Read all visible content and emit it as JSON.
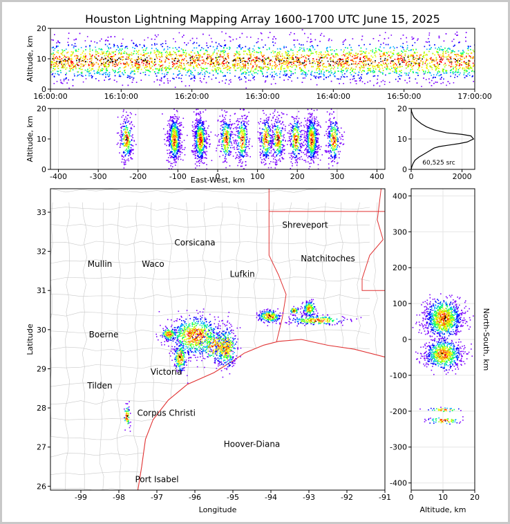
{
  "chart_data": [
    {
      "type": "scatter",
      "title": "Houston Lightning Mapping Array 1600-1700 UTC June 15, 2025",
      "xlabel": "",
      "ylabel": "Altitude, km",
      "xticks": [
        "16:00:00",
        "16:10:00",
        "16:20:00",
        "16:30:00",
        "16:40:00",
        "16:50:00",
        "17:00:00"
      ],
      "xlim": [
        "16:00:00",
        "17:00:00"
      ],
      "ylim": [
        0,
        20
      ],
      "yticks": [
        0,
        10,
        20
      ],
      "description_of_density": "source density vs time, most sources between 5 and 15 km altitude"
    },
    {
      "type": "scatter",
      "xlabel": "East-West, km",
      "ylabel": "Altitude, km",
      "xlim": [
        -420,
        420
      ],
      "ylim": [
        0,
        20
      ],
      "xticks": [
        -400,
        -300,
        -200,
        -100,
        0,
        100,
        200,
        300,
        400
      ],
      "yticks": [
        0,
        10,
        20
      ],
      "clusters_x": [
        -230,
        -110,
        -45,
        20,
        60,
        120,
        150,
        195,
        235,
        290
      ]
    },
    {
      "type": "line",
      "xlabel": "",
      "ylabel": "",
      "xlim": [
        0,
        2500
      ],
      "ylim": [
        0,
        20
      ],
      "xticks": [
        0,
        2000
      ],
      "yticks": [
        0,
        10,
        20
      ],
      "annotation": "60,525 src",
      "series": [
        {
          "x": [
            0,
            30,
            80,
            150,
            300,
            500,
            700,
            900,
            1100,
            1500,
            1900,
            2200,
            2450,
            2350,
            2000,
            1400,
            900,
            600,
            400,
            250,
            120,
            60,
            20,
            0
          ],
          "y": [
            0,
            1,
            2,
            3,
            4,
            5,
            6,
            7,
            7.5,
            8,
            8.5,
            9,
            10,
            11,
            11.5,
            12,
            13,
            14,
            15,
            16,
            17,
            18,
            19,
            20
          ]
        }
      ]
    },
    {
      "type": "map",
      "xlabel": "Longitude",
      "ylabel": "Latitude",
      "xlim": [
        -99.8,
        -91
      ],
      "ylim": [
        25.9,
        33.6
      ],
      "xticks": [
        -99,
        -98,
        -97,
        -96,
        -95,
        -94,
        -93,
        -92,
        -91
      ],
      "yticks": [
        26,
        27,
        28,
        29,
        30,
        31,
        32,
        33
      ],
      "cities": [
        {
          "name": "Shreveport",
          "lon": -93.1,
          "lat": 32.6,
          "color": "#000000"
        },
        {
          "name": "Corsicana",
          "lon": -96.0,
          "lat": 32.15,
          "color": "#000000"
        },
        {
          "name": "Mullin",
          "lon": -98.5,
          "lat": 31.6,
          "color": "#ff7f2a"
        },
        {
          "name": "Waco",
          "lon": -97.1,
          "lat": 31.6,
          "color": "#000000"
        },
        {
          "name": "Natchitoches",
          "lon": -92.5,
          "lat": 31.75,
          "color": "#000000"
        },
        {
          "name": "Lufkin",
          "lon": -94.75,
          "lat": 31.35,
          "color": "#000000"
        },
        {
          "name": "Boerne",
          "lon": -98.4,
          "lat": 29.8,
          "color": "#000000"
        },
        {
          "name": "Tilden",
          "lon": -98.5,
          "lat": 28.5,
          "color": "#000000"
        },
        {
          "name": "Victoria",
          "lon": -96.75,
          "lat": 28.85,
          "color": "#000000"
        },
        {
          "name": "Corpus Christi",
          "lon": -96.75,
          "lat": 27.8,
          "color": "#000000"
        },
        {
          "name": "Hoover-Diana",
          "lon": -94.5,
          "lat": 27.0,
          "color": "#1a1aff"
        },
        {
          "name": "Port Isabel",
          "lon": -97.0,
          "lat": 26.1,
          "color": "#000000"
        }
      ]
    },
    {
      "type": "scatter",
      "xlabel": "Altitude, km",
      "ylabel": "North-South, km",
      "xlim": [
        0,
        20
      ],
      "ylim": [
        -420,
        420
      ],
      "xticks": [
        0,
        10,
        20
      ],
      "yticks": [
        -400,
        -300,
        -200,
        -100,
        0,
        100,
        200,
        300,
        400
      ]
    }
  ]
}
